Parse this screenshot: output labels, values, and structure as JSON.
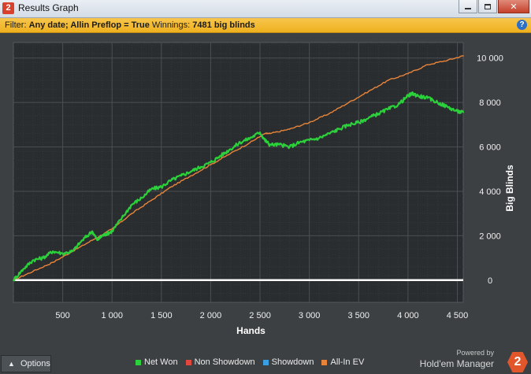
{
  "window": {
    "title": "Results Graph",
    "app_icon": "2",
    "controls": [
      "minimize-icon",
      "maximize-icon",
      "close-icon"
    ]
  },
  "filter": {
    "prefix": "Filter: ",
    "value": "Any date; Allin Preflop = True",
    "winnings_label": " Winnings: ",
    "winnings_value": "7481 big blinds",
    "help_icon": "?"
  },
  "footer": {
    "options_label": "Options",
    "powered_by": "Powered by",
    "brand_name": "Hold'em Manager",
    "brand_badge": "2"
  },
  "colors": {
    "net_won": "#2bd13a",
    "non_showdown": "#e2473d",
    "showdown": "#3a9fe0",
    "all_in_ev": "#e8843a",
    "plot_bg": "#2a2d2f",
    "grid": "#4a4f53",
    "zero_line": "#ffffff"
  },
  "chart_data": {
    "type": "line",
    "xlabel": "Hands",
    "ylabel": "Big Blinds",
    "xlim": [
      0,
      4560
    ],
    "ylim": [
      -1000,
      10700
    ],
    "xticks": [
      500,
      1000,
      1500,
      2000,
      2500,
      3000,
      3500,
      4000,
      4500
    ],
    "xtick_labels": [
      "500",
      "1 000",
      "1 500",
      "2 000",
      "2 500",
      "3 000",
      "3 500",
      "4 000",
      "4 500"
    ],
    "yticks": [
      0,
      2000,
      4000,
      6000,
      8000,
      10000
    ],
    "ytick_labels": [
      "0",
      "2 000",
      "4 000",
      "6 000",
      "8 000",
      "10 000"
    ],
    "grid": true,
    "legend_position": "bottom",
    "legend": [
      {
        "name": "Net Won",
        "color": "#2bd13a"
      },
      {
        "name": "Non Showdown",
        "color": "#e2473d"
      },
      {
        "name": "Showdown",
        "color": "#3a9fe0"
      },
      {
        "name": "All-In EV",
        "color": "#e8843a"
      }
    ],
    "series": [
      {
        "name": "Net Won",
        "color": "#2bd13a",
        "x": [
          0,
          100,
          200,
          300,
          400,
          500,
          600,
          700,
          800,
          850,
          900,
          950,
          1000,
          1100,
          1200,
          1300,
          1400,
          1500,
          1600,
          1700,
          1800,
          1900,
          2000,
          2100,
          2200,
          2300,
          2400,
          2500,
          2550,
          2600,
          2700,
          2800,
          2900,
          3000,
          3100,
          3200,
          3300,
          3400,
          3500,
          3600,
          3700,
          3800,
          3900,
          4000,
          4050,
          4100,
          4200,
          4300,
          4400,
          4500,
          4560
        ],
        "values": [
          0,
          500,
          900,
          1000,
          1300,
          1200,
          1300,
          1800,
          2200,
          1800,
          2000,
          2100,
          2200,
          2800,
          3400,
          3700,
          4100,
          4200,
          4500,
          4700,
          4900,
          5100,
          5300,
          5600,
          5900,
          6200,
          6400,
          6650,
          6300,
          6100,
          6100,
          6000,
          6200,
          6300,
          6400,
          6600,
          6800,
          7000,
          7100,
          7300,
          7500,
          7700,
          7900,
          8300,
          8400,
          8300,
          8200,
          8000,
          7800,
          7600,
          7550
        ]
      },
      {
        "name": "All-In EV",
        "color": "#e8843a",
        "x": [
          0,
          200,
          400,
          600,
          800,
          1000,
          1200,
          1400,
          1600,
          1800,
          2000,
          2200,
          2400,
          2550,
          2600,
          2800,
          3000,
          3200,
          3400,
          3600,
          3800,
          4000,
          4200,
          4400,
          4560
        ],
        "values": [
          0,
          400,
          800,
          1300,
          1800,
          2300,
          3000,
          3600,
          4200,
          4700,
          5200,
          5700,
          6200,
          6600,
          6600,
          6800,
          7100,
          7500,
          8000,
          8500,
          9000,
          9300,
          9700,
          9900,
          10100
        ]
      }
    ]
  }
}
